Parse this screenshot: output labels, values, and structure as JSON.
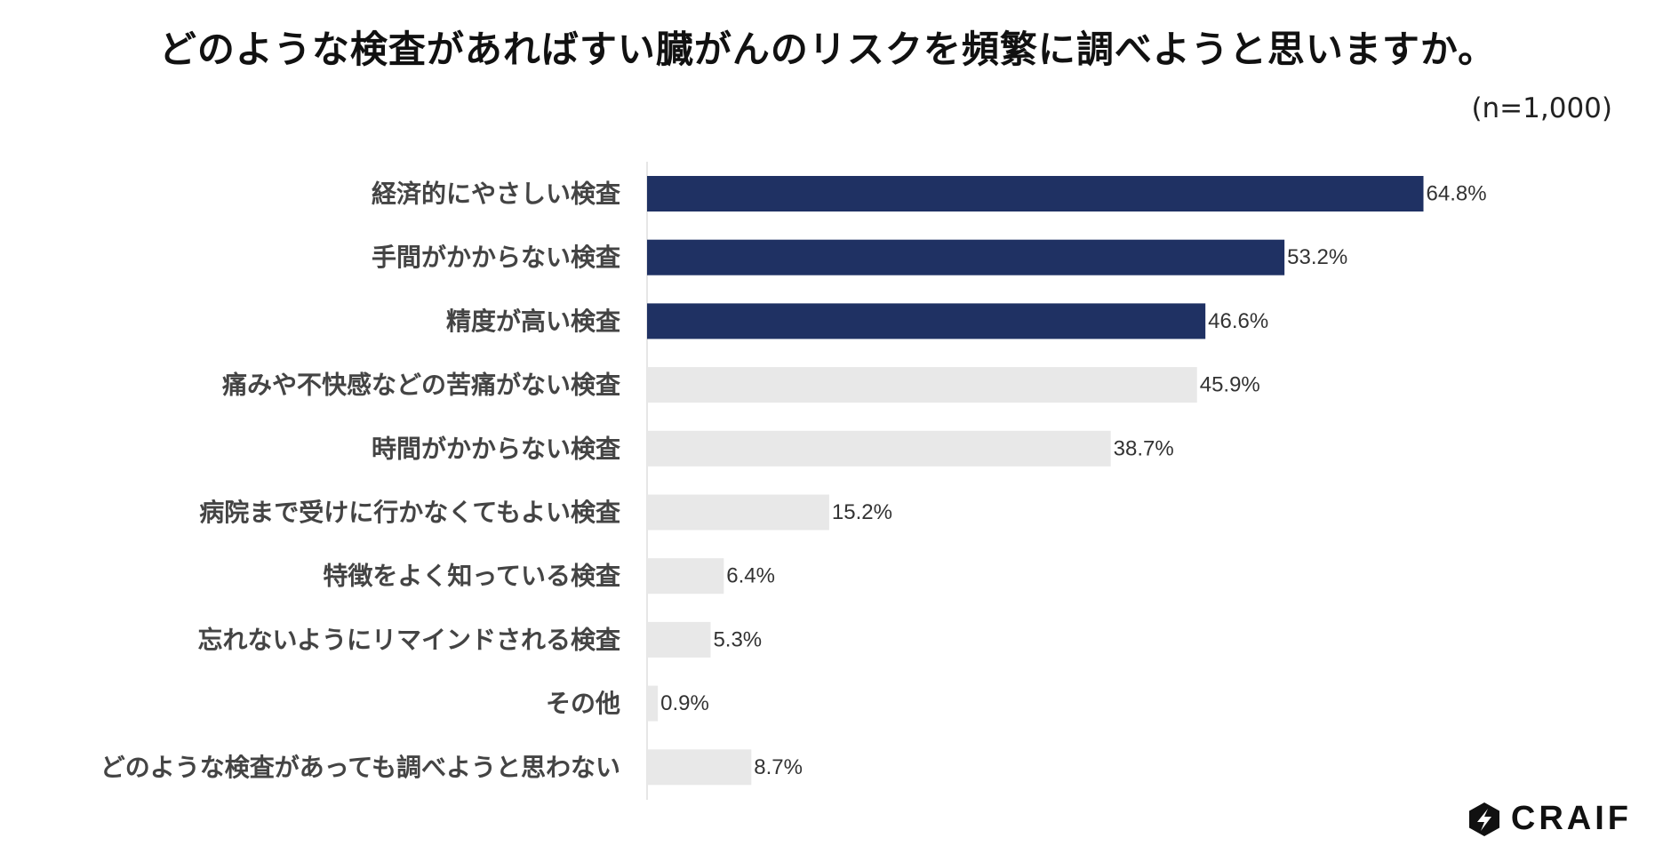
{
  "header": {
    "title": "どのような検査があればすい臓がんのリスクを頻繁に調べようと思いますか。",
    "sample_size": "(n=1,000)"
  },
  "logo": {
    "text": "CRAIF",
    "icon": "craif-logo-icon"
  },
  "colors": {
    "highlight": "#1f3163",
    "normal": "#e8e8e8",
    "axis": "#cccccc",
    "label": "#444444"
  },
  "chart_data": {
    "type": "bar",
    "orientation": "horizontal",
    "categories": [
      "経済的にやさしい検査",
      "手間がかからない検査",
      "精度が高い検査",
      "痛みや不快感などの苦痛がない検査",
      "時間がかからない検査",
      "病院まで受けに行かなくてもよい検査",
      "特徴をよく知っている検査",
      "忘れないようにリマインドされる検査",
      "その他",
      "どのような検査があっても調べようと思わない"
    ],
    "values": [
      64.8,
      53.2,
      46.6,
      45.9,
      38.7,
      15.2,
      6.4,
      5.3,
      0.9,
      8.7
    ],
    "value_labels": [
      "64.8%",
      "53.2%",
      "46.6%",
      "45.9%",
      "38.7%",
      "15.2%",
      "6.4%",
      "5.3%",
      "0.9%",
      "8.7%"
    ],
    "highlighted": [
      true,
      true,
      true,
      false,
      false,
      false,
      false,
      false,
      false,
      false
    ],
    "unit": "%",
    "xlim": [
      0,
      100
    ],
    "grid": false,
    "legend": "none"
  }
}
